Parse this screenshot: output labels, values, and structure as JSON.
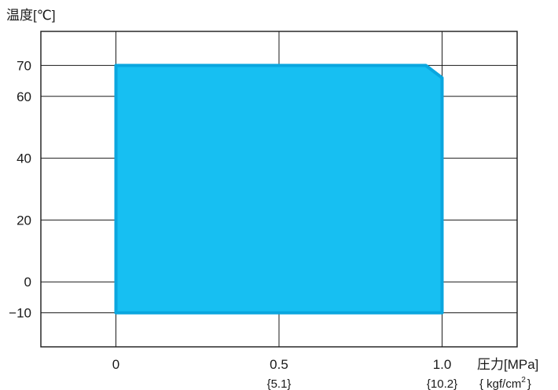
{
  "chart_data": {
    "type": "area",
    "ylabel": "温度[℃]",
    "xlabel": "圧力[MPa]",
    "xlabel_sub": "{ kgf/cm",
    "xlabel_sub_sup": "2",
    "xlabel_sub_end": "}",
    "xlim": [
      -0.23,
      1.23
    ],
    "ylim": [
      -21,
      81
    ],
    "x_ticks": [
      {
        "value": 0,
        "label": "0",
        "sub": ""
      },
      {
        "value": 0.5,
        "label": "0.5",
        "sub": "{5.1}"
      },
      {
        "value": 1.0,
        "label": "1.0",
        "sub": "{10.2}"
      }
    ],
    "y_ticks": [
      {
        "value": -10,
        "label": "−10"
      },
      {
        "value": 0,
        "label": "0"
      },
      {
        "value": 20,
        "label": "20"
      },
      {
        "value": 40,
        "label": "40"
      },
      {
        "value": 60,
        "label": "60"
      },
      {
        "value": 70,
        "label": "70"
      }
    ],
    "grid": true,
    "region": {
      "fill": "#17bff2",
      "stroke": "#0aa6df",
      "points": [
        [
          0,
          -10
        ],
        [
          0,
          70
        ],
        [
          0.95,
          70
        ],
        [
          1.0,
          66
        ],
        [
          1.0,
          -10
        ]
      ]
    }
  }
}
